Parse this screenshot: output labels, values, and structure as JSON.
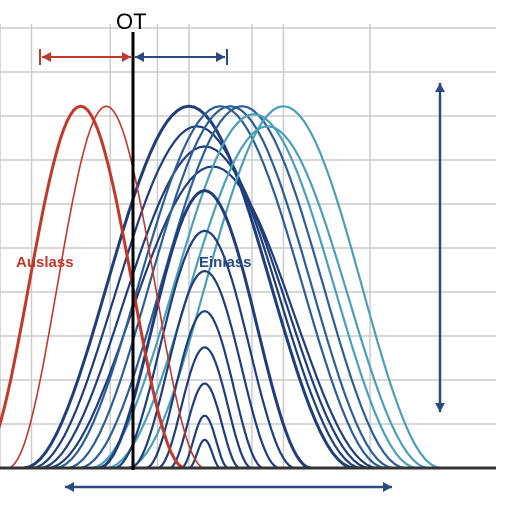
{
  "chart_data": {
    "type": "line",
    "title": "",
    "xlabel": "",
    "ylabel": "",
    "grid": true,
    "legend": "none",
    "xlim": [
      -1.4,
      4.9
    ],
    "ylim": [
      0,
      1.0
    ],
    "x_gridlines": [
      -1.4,
      -1.0,
      0.0,
      0.6,
      1.0,
      1.8,
      2.2,
      3.3
    ],
    "annotations": {
      "tdc": "OT",
      "exhaust": "Auslass",
      "intake": "Einlass"
    },
    "colors": {
      "exhaust": "#c0392b",
      "intake_dark": "#1f3e7a",
      "intake_mid": "#2d5f96",
      "intake_light": "#4aa0b8",
      "grid": "#cccccc",
      "axis": "#333333",
      "arrow_red": "#c0392b",
      "arrow_blue": "#2a4a7f"
    },
    "exhaust_series": [
      {
        "name": "Auslass",
        "start": -1.7,
        "end": 0.95,
        "peak": 0.9
      },
      {
        "name": "Auslass",
        "start": -1.3,
        "end": 1.2,
        "peak": 0.9
      }
    ],
    "intake_series": [
      {
        "start": -1.1,
        "end": 3.1,
        "peak": 0.9
      },
      {
        "start": -1.0,
        "end": 3.2,
        "peak": 0.85
      },
      {
        "start": -0.9,
        "end": 3.3,
        "peak": 0.8
      },
      {
        "start": -0.8,
        "end": 3.4,
        "peak": 0.75
      },
      {
        "start": -0.7,
        "end": 3.5,
        "peak": 0.9
      },
      {
        "start": -0.55,
        "end": 3.6,
        "peak": 0.9
      },
      {
        "start": -0.4,
        "end": 3.75,
        "peak": 0.9
      },
      {
        "start": -0.25,
        "end": 3.9,
        "peak": 0.88
      },
      {
        "start": -0.05,
        "end": 4.05,
        "peak": 0.85
      },
      {
        "start": 0.2,
        "end": 4.2,
        "peak": 0.9
      },
      {
        "start": -0.15,
        "end": 2.55,
        "peak": 0.69
      },
      {
        "start": 0.05,
        "end": 2.35,
        "peak": 0.59
      },
      {
        "start": 0.25,
        "end": 2.15,
        "peak": 0.49
      },
      {
        "start": 0.45,
        "end": 1.95,
        "peak": 0.39
      },
      {
        "start": 0.6,
        "end": 1.8,
        "peak": 0.3
      },
      {
        "start": 0.75,
        "end": 1.65,
        "peak": 0.21
      },
      {
        "start": 0.9,
        "end": 1.5,
        "peak": 0.13
      },
      {
        "start": 1.0,
        "end": 1.4,
        "peak": 0.07
      }
    ]
  }
}
